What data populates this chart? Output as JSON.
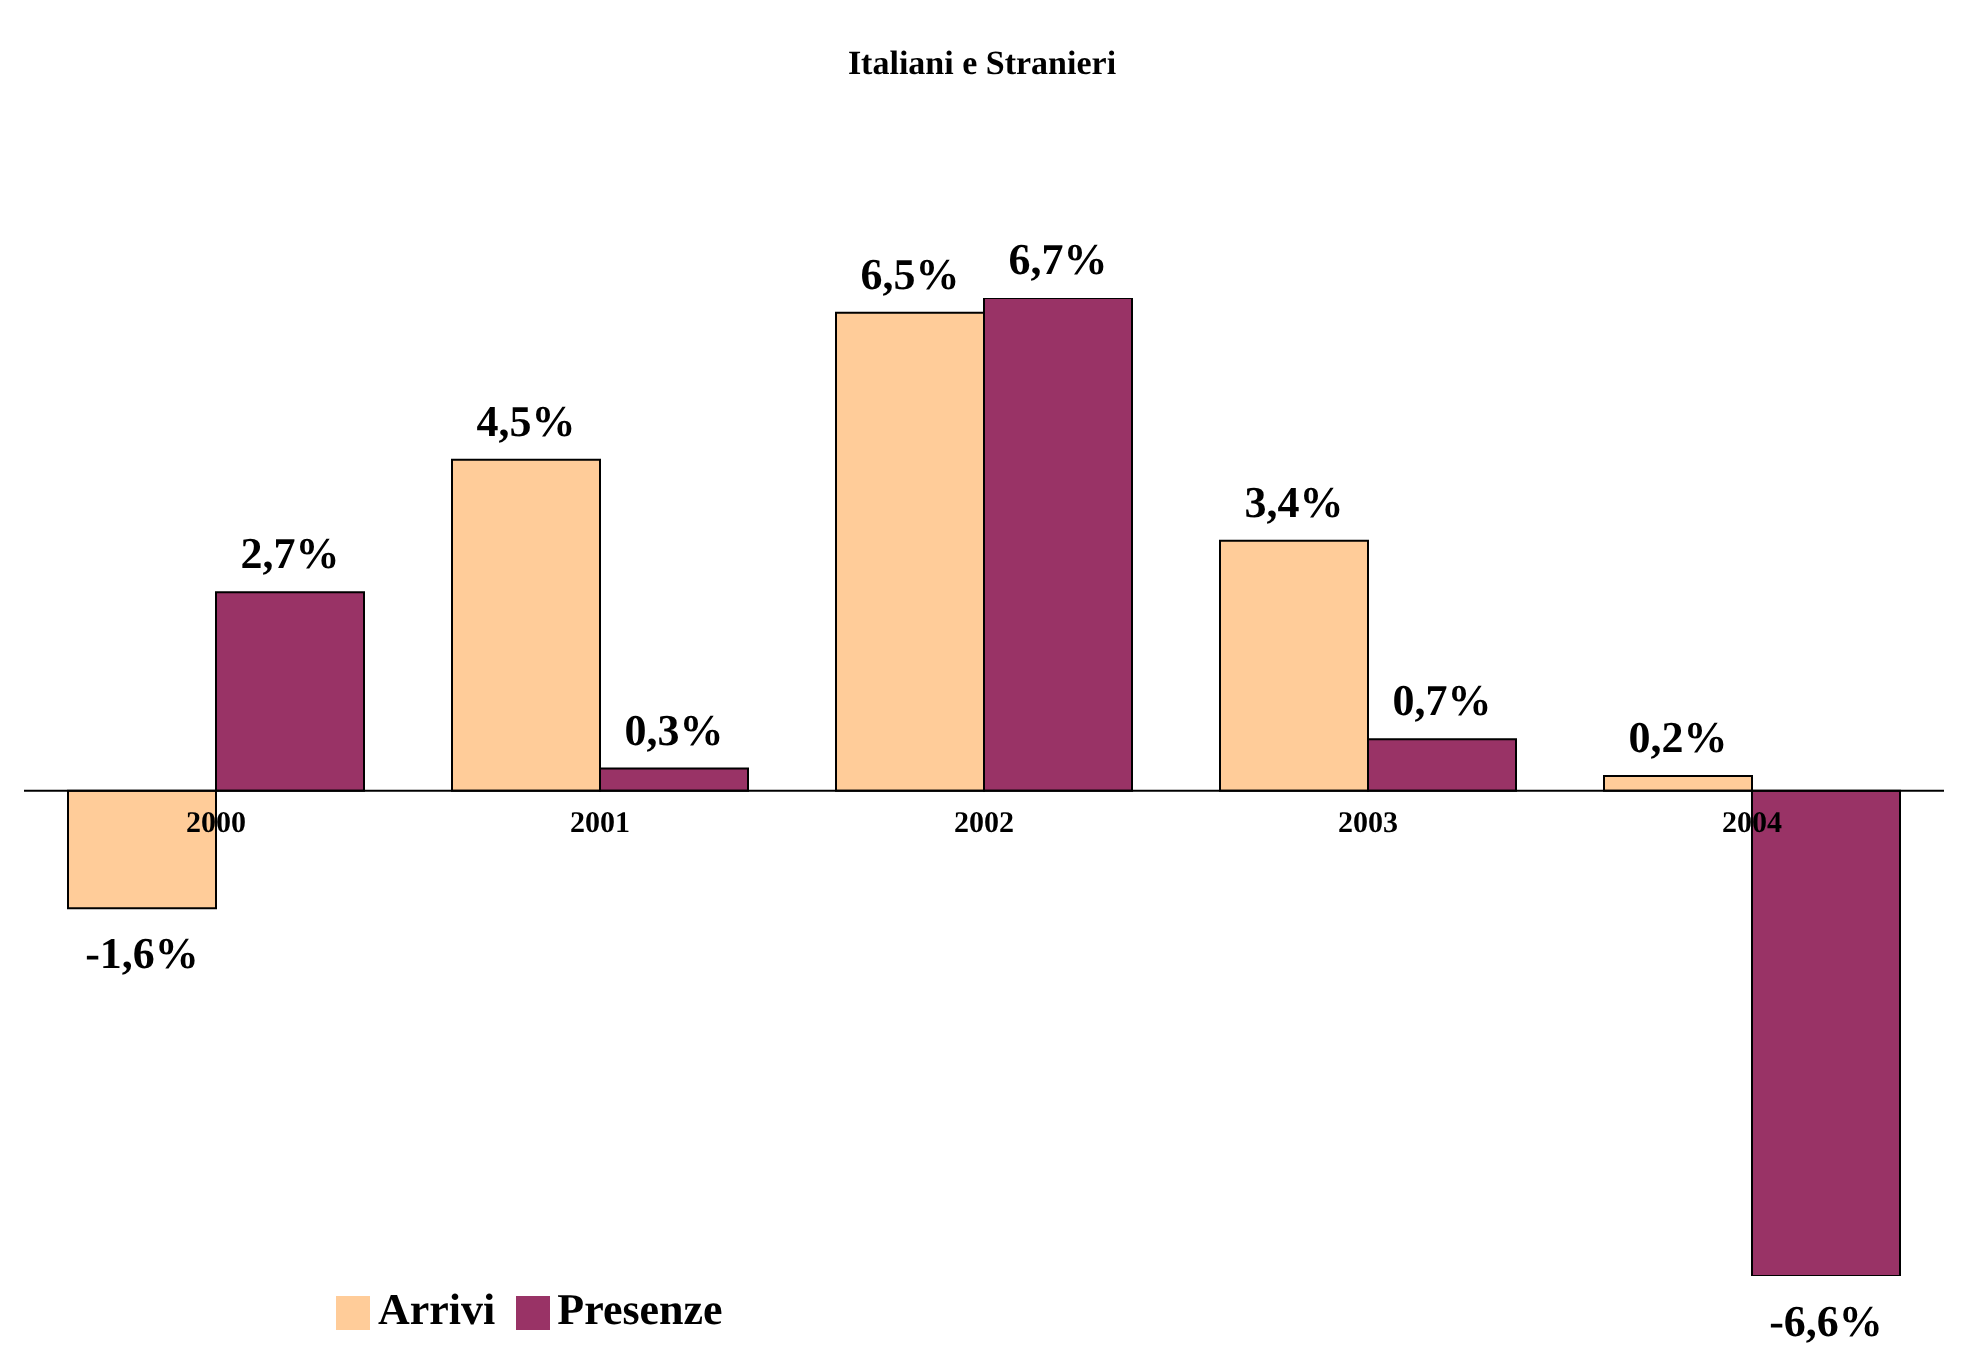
{
  "chart_data": {
    "type": "bar",
    "title": "Italiani e Stranieri",
    "categories": [
      "2000",
      "2001",
      "2002",
      "2003",
      "2004"
    ],
    "series": [
      {
        "name": "Arrivi",
        "color": "#ffcc99",
        "values": [
          -1.6,
          4.5,
          6.5,
          3.4,
          0.2
        ],
        "value_labels": [
          "-1,6%",
          "4,5%",
          "6,5%",
          "3,4%",
          "0,2%"
        ]
      },
      {
        "name": "Presenze",
        "color": "#993366",
        "values": [
          2.7,
          0.3,
          6.7,
          0.7,
          -6.6
        ],
        "value_labels": [
          "2,7%",
          "0,3%",
          "6,7%",
          "0,7%",
          "-6,6%"
        ]
      }
    ],
    "legend": "bottom left",
    "grid": false,
    "tick_labels": "x"
  }
}
